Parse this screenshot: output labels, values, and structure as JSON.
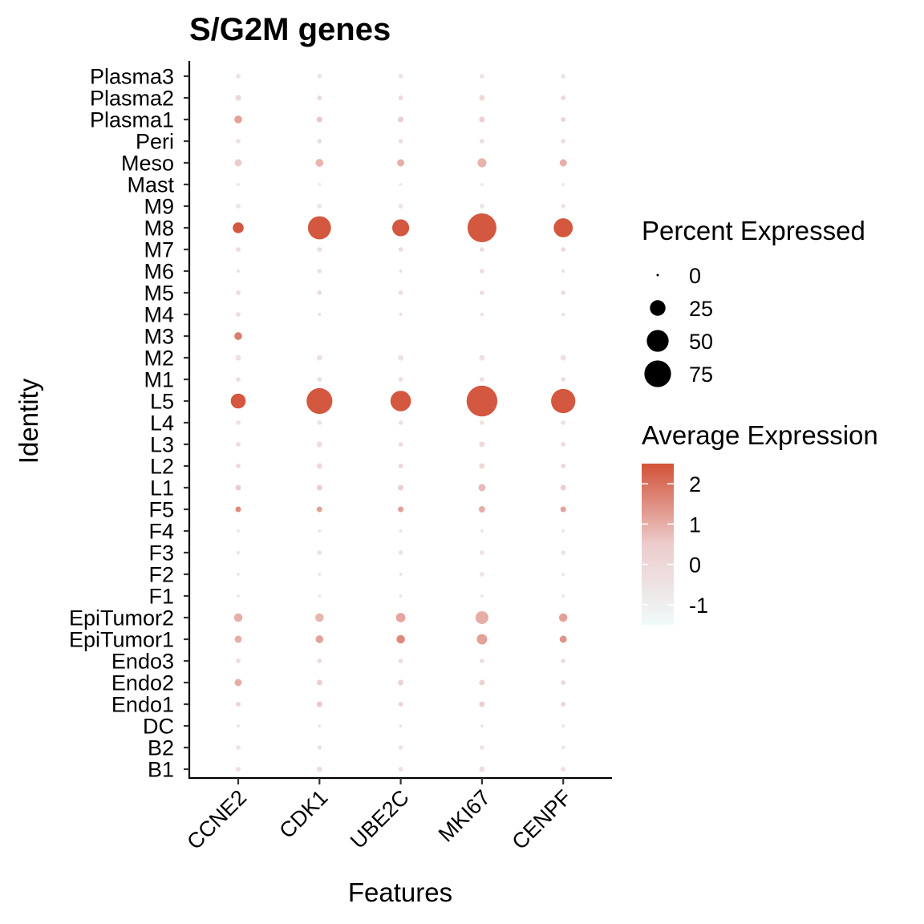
{
  "chart_data": {
    "type": "dotplot",
    "title": "S/G2M genes",
    "xlabel": "Features",
    "ylabel": "Identity",
    "features": [
      "CCNE2",
      "CDK1",
      "UBE2C",
      "MKI67",
      "CENPF"
    ],
    "identities": [
      "Plasma3",
      "Plasma2",
      "Plasma1",
      "Peri",
      "Meso",
      "Mast",
      "M9",
      "M8",
      "M7",
      "M6",
      "M5",
      "M4",
      "M3",
      "M2",
      "M1",
      "L5",
      "L4",
      "L3",
      "L2",
      "L1",
      "F5",
      "F4",
      "F3",
      "F2",
      "F1",
      "EpiTumor2",
      "EpiTumor1",
      "Endo3",
      "Endo2",
      "Endo1",
      "DC",
      "B2",
      "B1"
    ],
    "percent_expressed": [
      [
        2,
        2,
        2,
        2,
        2
      ],
      [
        3,
        2,
        2,
        3,
        2
      ],
      [
        6,
        3,
        3,
        3,
        2
      ],
      [
        2,
        2,
        2,
        2,
        2
      ],
      [
        5,
        6,
        5,
        8,
        5
      ],
      [
        1,
        1,
        1,
        1,
        1
      ],
      [
        2,
        2,
        2,
        2,
        2
      ],
      [
        12,
        56,
        30,
        88,
        38
      ],
      [
        2,
        2,
        2,
        2,
        2
      ],
      [
        1,
        2,
        1,
        2,
        1
      ],
      [
        2,
        2,
        2,
        2,
        2
      ],
      [
        2,
        1,
        1,
        1,
        1
      ],
      [
        6,
        0,
        0,
        0,
        0
      ],
      [
        3,
        3,
        3,
        3,
        3
      ],
      [
        2,
        2,
        2,
        2,
        2
      ],
      [
        23,
        70,
        44,
        100,
        62
      ],
      [
        2,
        2,
        2,
        2,
        2
      ],
      [
        2,
        3,
        2,
        3,
        2
      ],
      [
        2,
        3,
        2,
        3,
        2
      ],
      [
        3,
        3,
        3,
        5,
        3
      ],
      [
        3,
        3,
        3,
        4,
        3
      ],
      [
        1,
        1,
        1,
        1,
        1
      ],
      [
        1,
        2,
        2,
        2,
        2
      ],
      [
        1,
        1,
        1,
        2,
        1
      ],
      [
        1,
        1,
        1,
        1,
        1
      ],
      [
        7,
        7,
        9,
        17,
        7
      ],
      [
        5,
        6,
        7,
        11,
        5
      ],
      [
        2,
        2,
        2,
        2,
        2
      ],
      [
        5,
        3,
        3,
        3,
        2
      ],
      [
        2,
        3,
        2,
        3,
        2
      ],
      [
        1,
        1,
        1,
        1,
        1
      ],
      [
        2,
        2,
        2,
        2,
        1
      ],
      [
        2,
        3,
        2,
        3,
        2
      ]
    ],
    "average_expression": [
      [
        -0.5,
        -0.5,
        -0.5,
        -0.5,
        -0.5
      ],
      [
        0.0,
        0.0,
        0.0,
        0.0,
        0.0
      ],
      [
        1.2,
        0.6,
        0.4,
        0.4,
        0.2
      ],
      [
        -0.3,
        -0.3,
        -0.3,
        -0.3,
        -0.3
      ],
      [
        0.5,
        0.9,
        1.0,
        0.9,
        1.0
      ],
      [
        -0.8,
        -0.8,
        -0.8,
        -0.8,
        -0.8
      ],
      [
        -0.5,
        -0.5,
        -0.5,
        -0.5,
        -0.5
      ],
      [
        2.4,
        2.4,
        2.4,
        2.4,
        2.4
      ],
      [
        -0.2,
        -0.2,
        -0.2,
        -0.2,
        -0.2
      ],
      [
        -0.3,
        -0.3,
        -0.3,
        -0.3,
        -0.3
      ],
      [
        -0.2,
        -0.2,
        -0.2,
        -0.2,
        -0.2
      ],
      [
        -0.2,
        -0.3,
        -0.3,
        -0.3,
        -0.3
      ],
      [
        1.8,
        -0.8,
        -0.8,
        -0.8,
        -0.8
      ],
      [
        -0.4,
        -0.4,
        -0.4,
        -0.4,
        -0.4
      ],
      [
        -0.3,
        -0.3,
        -0.3,
        -0.3,
        -0.3
      ],
      [
        2.4,
        2.4,
        2.4,
        2.4,
        2.4
      ],
      [
        -0.4,
        -0.4,
        -0.4,
        -0.4,
        -0.4
      ],
      [
        -0.2,
        -0.2,
        -0.2,
        -0.2,
        -0.2
      ],
      [
        0.0,
        0.0,
        0.0,
        0.0,
        0.0
      ],
      [
        0.4,
        0.4,
        0.4,
        0.8,
        0.4
      ],
      [
        1.6,
        1.2,
        1.2,
        1.0,
        1.2
      ],
      [
        -0.6,
        -0.6,
        -0.6,
        -0.6,
        -0.6
      ],
      [
        -0.4,
        -0.4,
        -0.4,
        -0.4,
        -0.4
      ],
      [
        -0.8,
        -0.6,
        -0.6,
        -0.5,
        -0.6
      ],
      [
        -0.7,
        -0.7,
        -0.7,
        -0.7,
        -0.7
      ],
      [
        1.0,
        0.9,
        1.1,
        1.0,
        1.2
      ],
      [
        1.0,
        1.2,
        1.6,
        1.2,
        1.4
      ],
      [
        -0.2,
        -0.2,
        -0.2,
        -0.2,
        -0.2
      ],
      [
        1.0,
        0.4,
        0.2,
        0.2,
        0.0
      ],
      [
        0.2,
        0.6,
        0.2,
        0.4,
        0.2
      ],
      [
        -0.6,
        -0.6,
        -0.6,
        -0.6,
        -0.6
      ],
      [
        -0.5,
        -0.5,
        -0.5,
        -0.5,
        -0.5
      ],
      [
        -0.3,
        -0.3,
        -0.3,
        -0.3,
        -0.3
      ]
    ],
    "size_legend": {
      "title": "Percent Expressed",
      "breaks": [
        0,
        25,
        50,
        75
      ]
    },
    "color_legend": {
      "title": "Average Expression",
      "breaks": [
        2,
        1,
        0,
        -1
      ],
      "range": [
        -1.5,
        2.5
      ]
    },
    "colors": {
      "low": "#f0fafa",
      "mid": "#eccccc",
      "high": "#d25238"
    },
    "grid": false
  }
}
